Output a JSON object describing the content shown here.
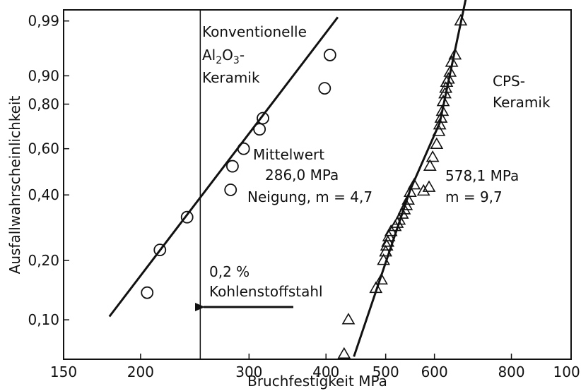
{
  "chart_data": {
    "type": "scatter",
    "title": "",
    "xlabel": "Bruchfestigkeit MPa",
    "ylabel": "Ausfallwahrscheinlichkeit",
    "x_scale": "log",
    "y_scale": "weibull",
    "xlim": [
      150,
      1000
    ],
    "ylim": [
      0.062,
      0.995
    ],
    "grid": false,
    "x_ticks": [
      150,
      200,
      300,
      400,
      500,
      600,
      800,
      1000
    ],
    "x_tick_labels": [
      "150",
      "200",
      "300",
      "400",
      "500",
      "600",
      "800",
      "1000"
    ],
    "y_ticks": [
      0.1,
      0.2,
      0.4,
      0.6,
      0.8,
      0.9,
      0.99
    ],
    "y_tick_labels": [
      "0,10",
      "0,20",
      "0,40",
      "0,60",
      "0,80",
      "0,90",
      "0,99"
    ],
    "series": [
      {
        "name": "Konventionelle Al2O3-Keramik",
        "marker": "circle",
        "x": [
          205,
          215,
          238,
          280,
          282,
          294,
          312,
          316,
          398,
          406
        ],
        "y": [
          0.138,
          0.225,
          0.32,
          0.42,
          0.52,
          0.6,
          0.69,
          0.74,
          0.86,
          0.95
        ],
        "fit_line": {
          "x": [
            178,
            418
          ],
          "y": [
            0.104,
            0.992
          ]
        }
      },
      {
        "name": "CPS-Keramik",
        "marker": "triangle",
        "x": [
          428,
          435,
          482,
          492,
          496,
          500,
          502,
          504,
          506,
          510,
          518,
          522,
          526,
          532,
          536,
          540,
          544,
          548,
          556,
          576,
          588,
          590,
          596,
          605,
          610,
          612,
          615,
          618,
          620,
          624,
          626,
          628,
          632,
          636,
          640,
          648,
          662
        ],
        "y": [
          0.066,
          0.1,
          0.145,
          0.16,
          0.2,
          0.22,
          0.235,
          0.245,
          0.26,
          0.275,
          0.29,
          0.3,
          0.31,
          0.33,
          0.345,
          0.36,
          0.38,
          0.41,
          0.44,
          0.415,
          0.43,
          0.52,
          0.56,
          0.62,
          0.68,
          0.71,
          0.74,
          0.77,
          0.81,
          0.84,
          0.86,
          0.88,
          0.89,
          0.91,
          0.935,
          0.95,
          0.99
        ],
        "fit_line": {
          "x": [
            444,
            548,
            612,
            680
          ],
          "y": [
            0.064,
            0.42,
            0.72,
            0.999
          ]
        }
      }
    ],
    "reference_line": {
      "x": 250
    },
    "annotations": {
      "conv_line1": "Konventionelle",
      "conv_line2_main": "Al",
      "conv_line2_sub1": "2",
      "conv_line2_mid": "O",
      "conv_line2_sub2": "3",
      "conv_line2_end": "-",
      "conv_line3": "Keramik",
      "mean_line1": "Mittelwert",
      "mean_line2": "286,0 MPa",
      "mean_line3": "Neigung, m = 4,7",
      "cps_line1": "CPS-",
      "cps_line2": "Keramik",
      "cps_mean": "578,1 MPa",
      "cps_m": "m = 9,7",
      "steel_line1": "0,2 %",
      "steel_line2": "Kohlenstoffstahl"
    }
  }
}
